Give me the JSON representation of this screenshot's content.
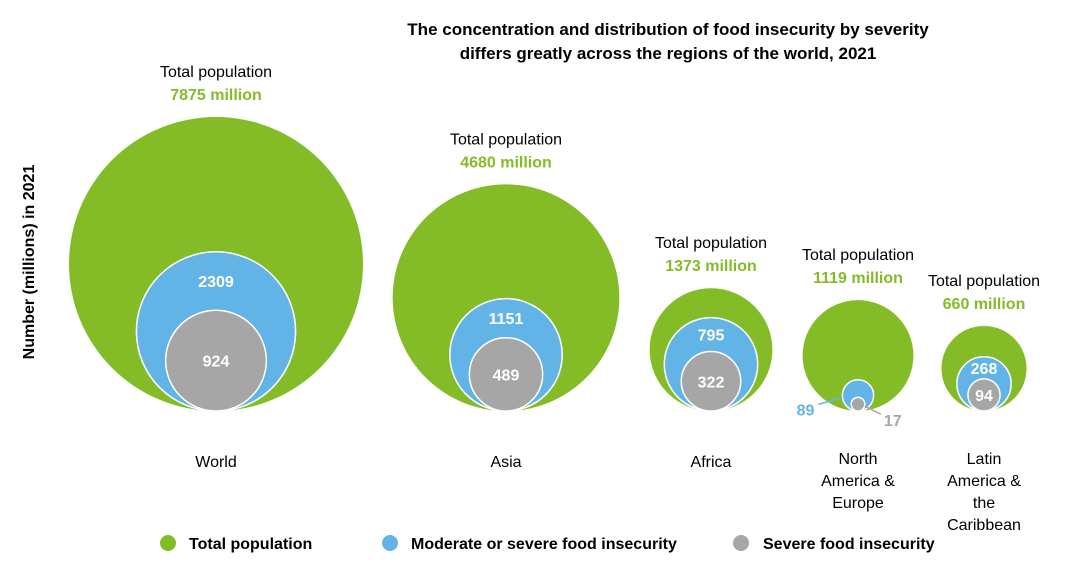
{
  "chart_data": {
    "type": "bubble",
    "title_lines": [
      "The concentration and distribution of food insecurity by severity",
      "differs greatly across the regions of the world, 2021"
    ],
    "ylabel": "Number (millions) in 2021",
    "total_label": "Total population",
    "unit_suffix": " million",
    "series": [
      {
        "key": "total",
        "name": "Total population",
        "color": "#84BC27"
      },
      {
        "key": "moderate",
        "name": "Moderate or severe food insecurity",
        "color": "#63B4E6"
      },
      {
        "key": "severe",
        "name": "Severe food insecurity",
        "color": "#A6A6A6"
      }
    ],
    "regions": [
      {
        "name_lines": [
          "World"
        ],
        "total": 7875,
        "moderate": 2309,
        "severe": 924
      },
      {
        "name_lines": [
          "Asia"
        ],
        "total": 4680,
        "moderate": 1151,
        "severe": 489
      },
      {
        "name_lines": [
          "Africa"
        ],
        "total": 1373,
        "moderate": 795,
        "severe": 322
      },
      {
        "name_lines": [
          "North",
          "America &",
          "Europe"
        ],
        "total": 1119,
        "moderate": 89,
        "severe": 17
      },
      {
        "name_lines": [
          "Latin",
          "America &",
          "the",
          "Caribbean"
        ],
        "total": 660,
        "moderate": 268,
        "severe": 94
      }
    ]
  }
}
